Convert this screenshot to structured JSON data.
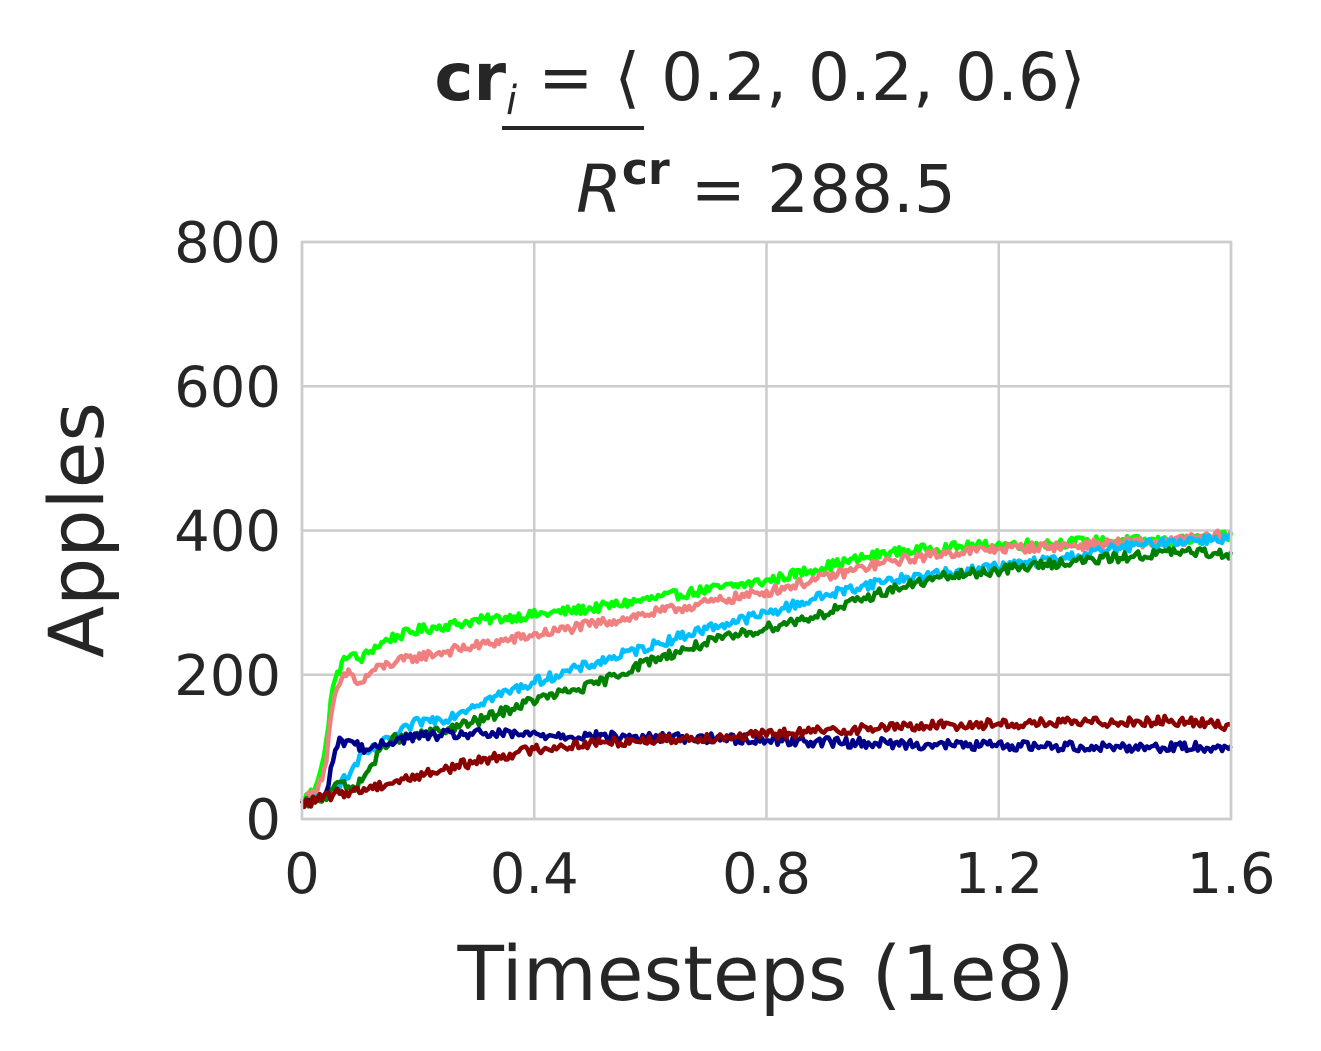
{
  "chart_data": {
    "type": "line",
    "title_line1": {
      "bold": "cr",
      "subscript": "i",
      "rest": " = ⟨ 0.2, 0.2, 0.6⟩"
    },
    "title_line2": {
      "symbol": "R",
      "superscript": "cr",
      "rest": " = 288.5"
    },
    "xlabel": "Timesteps (1e8)",
    "ylabel": "Apples",
    "xlim": [
      0,
      1.6
    ],
    "ylim": [
      0,
      800
    ],
    "xticks": [
      0,
      0.4,
      0.8,
      1.2,
      1.6
    ],
    "xtick_labels": [
      "0",
      "0.4",
      "0.8",
      "1.2",
      "1.6"
    ],
    "yticks": [
      0,
      200,
      400,
      600,
      800
    ],
    "ytick_labels": [
      "0",
      "200",
      "400",
      "600",
      "800"
    ],
    "grid": true,
    "series": [
      {
        "color": "#00ff00",
        "x": [
          0,
          0.02,
          0.04,
          0.05,
          0.06,
          0.08,
          0.1,
          0.12,
          0.15,
          0.2,
          0.3,
          0.4,
          0.5,
          0.6,
          0.7,
          0.8,
          0.9,
          1.0,
          1.1,
          1.2,
          1.3,
          1.4,
          1.5,
          1.6
        ],
        "y": [
          25,
          40,
          90,
          170,
          200,
          230,
          220,
          235,
          250,
          262,
          275,
          283,
          292,
          305,
          318,
          330,
          350,
          368,
          376,
          380,
          383,
          386,
          385,
          392
        ]
      },
      {
        "color": "#f08080",
        "x": [
          0,
          0.02,
          0.04,
          0.05,
          0.06,
          0.08,
          0.1,
          0.12,
          0.15,
          0.2,
          0.3,
          0.4,
          0.5,
          0.6,
          0.7,
          0.8,
          0.9,
          1.0,
          1.1,
          1.2,
          1.3,
          1.4,
          1.5,
          1.6
        ],
        "y": [
          25,
          35,
          70,
          140,
          180,
          205,
          185,
          205,
          215,
          225,
          240,
          255,
          270,
          285,
          300,
          315,
          335,
          355,
          368,
          375,
          378,
          382,
          385,
          395
        ]
      },
      {
        "color": "#00bfff",
        "x": [
          0,
          0.02,
          0.04,
          0.06,
          0.08,
          0.1,
          0.12,
          0.15,
          0.2,
          0.25,
          0.3,
          0.4,
          0.5,
          0.6,
          0.7,
          0.8,
          0.9,
          1.0,
          1.1,
          1.2,
          1.3,
          1.4,
          1.5,
          1.6
        ],
        "y": [
          20,
          25,
          30,
          45,
          60,
          85,
          95,
          110,
          135,
          140,
          160,
          190,
          215,
          240,
          265,
          285,
          310,
          330,
          340,
          350,
          360,
          375,
          385,
          390
        ]
      },
      {
        "color": "#008000",
        "x": [
          0,
          0.02,
          0.04,
          0.06,
          0.08,
          0.1,
          0.12,
          0.15,
          0.2,
          0.25,
          0.3,
          0.35,
          0.4,
          0.45,
          0.5,
          0.6,
          0.7,
          0.8,
          0.9,
          1.0,
          1.1,
          1.2,
          1.3,
          1.4,
          1.5,
          1.6
        ],
        "y": [
          20,
          25,
          30,
          55,
          40,
          50,
          75,
          110,
          115,
          125,
          135,
          150,
          165,
          175,
          185,
          220,
          245,
          265,
          285,
          315,
          335,
          345,
          355,
          362,
          370,
          368
        ]
      },
      {
        "color": "#00008b",
        "x": [
          0,
          0.02,
          0.04,
          0.05,
          0.06,
          0.08,
          0.1,
          0.12,
          0.15,
          0.2,
          0.3,
          0.4,
          0.5,
          0.6,
          0.7,
          0.8,
          0.9,
          1.0,
          1.1,
          1.2,
          1.3,
          1.4,
          1.5,
          1.6
        ],
        "y": [
          20,
          25,
          30,
          70,
          105,
          110,
          100,
          95,
          108,
          115,
          118,
          117,
          115,
          113,
          112,
          110,
          107,
          105,
          103,
          102,
          101,
          100,
          100,
          100
        ]
      },
      {
        "color": "#8b0000",
        "x": [
          0,
          0.02,
          0.04,
          0.06,
          0.08,
          0.1,
          0.15,
          0.2,
          0.25,
          0.3,
          0.4,
          0.5,
          0.6,
          0.7,
          0.8,
          0.9,
          1.0,
          1.1,
          1.2,
          1.3,
          1.4,
          1.5,
          1.6
        ],
        "y": [
          20,
          25,
          30,
          35,
          38,
          40,
          50,
          60,
          70,
          80,
          97,
          105,
          110,
          113,
          117,
          122,
          127,
          130,
          132,
          133,
          135,
          136,
          130
        ]
      }
    ]
  }
}
